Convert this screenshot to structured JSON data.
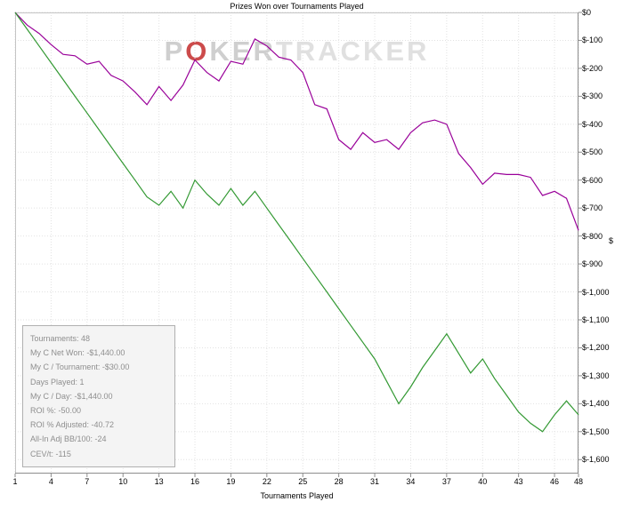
{
  "chart_data": {
    "type": "line",
    "title": "Prizes Won over Tournaments Played",
    "xlabel": "Tournaments Played",
    "ylabel": "$",
    "grid": true,
    "legend": "none",
    "xlim": [
      1,
      48
    ],
    "ylim": [
      0,
      -1650
    ],
    "x_ticks": [
      1,
      4,
      7,
      10,
      13,
      16,
      19,
      22,
      25,
      28,
      31,
      34,
      37,
      40,
      43,
      46,
      48
    ],
    "y_ticks": [
      0,
      -100,
      -200,
      -300,
      -400,
      -500,
      -600,
      -700,
      -800,
      -900,
      -1000,
      -1100,
      -1200,
      -1300,
      -1400,
      -1500,
      -1600
    ],
    "y_tick_labels": [
      "$0",
      "$-100",
      "$-200",
      "$-300",
      "$-400",
      "$-500",
      "$-600",
      "$-700",
      "$-800",
      "$-900",
      "$-1,000",
      "$-1,100",
      "$-1,200",
      "$-1,300",
      "$-1,400",
      "$-1,500",
      "$-1,600"
    ],
    "x_start": 1,
    "series": [
      {
        "id": "magenta",
        "color": "#990099",
        "values": [
          0,
          -45,
          -75,
          -115,
          -150,
          -155,
          -185,
          -175,
          -225,
          -245,
          -285,
          -330,
          -265,
          -315,
          -260,
          -170,
          -215,
          -245,
          -175,
          -185,
          -95,
          -120,
          -160,
          -170,
          -215,
          -330,
          -345,
          -455,
          -490,
          -430,
          -465,
          -455,
          -490,
          -430,
          -395,
          -385,
          -400,
          -505,
          -555,
          -615,
          -575,
          -580,
          -580,
          -590,
          -655,
          -640,
          -665,
          -780
        ]
      },
      {
        "id": "green",
        "color": "#339933",
        "values": [
          0,
          -60,
          -120,
          -180,
          -240,
          -300,
          -360,
          -420,
          -480,
          -540,
          -600,
          -660,
          -690,
          -640,
          -700,
          -600,
          -650,
          -690,
          -630,
          -690,
          -640,
          -700,
          -760,
          -820,
          -880,
          -940,
          -1000,
          -1060,
          -1120,
          -1180,
          -1240,
          -1320,
          -1400,
          -1340,
          -1270,
          -1210,
          -1150,
          -1220,
          -1290,
          -1240,
          -1310,
          -1370,
          -1430,
          -1470,
          -1500,
          -1440,
          -1390,
          -1440
        ]
      }
    ]
  },
  "stats_box": {
    "lines": [
      "Tournaments: 48",
      "My C Net Won: -$1,440.00",
      "My C / Tournament: -$30.00",
      "Days Played: 1",
      "My C / Day: -$1,440.00",
      "ROI %: -50.00",
      "ROI % Adjusted: -40.72",
      "All-In Adj BB/100: -24",
      "CEV/t: -115"
    ]
  },
  "watermark": {
    "p1": "P",
    "o": "O",
    "p2": "KER",
    "p3": "TRACKER",
    "letter_color": "#cfcfcf",
    "light_color": "#e0e0e0",
    "o_color": "#cc4b4b"
  }
}
